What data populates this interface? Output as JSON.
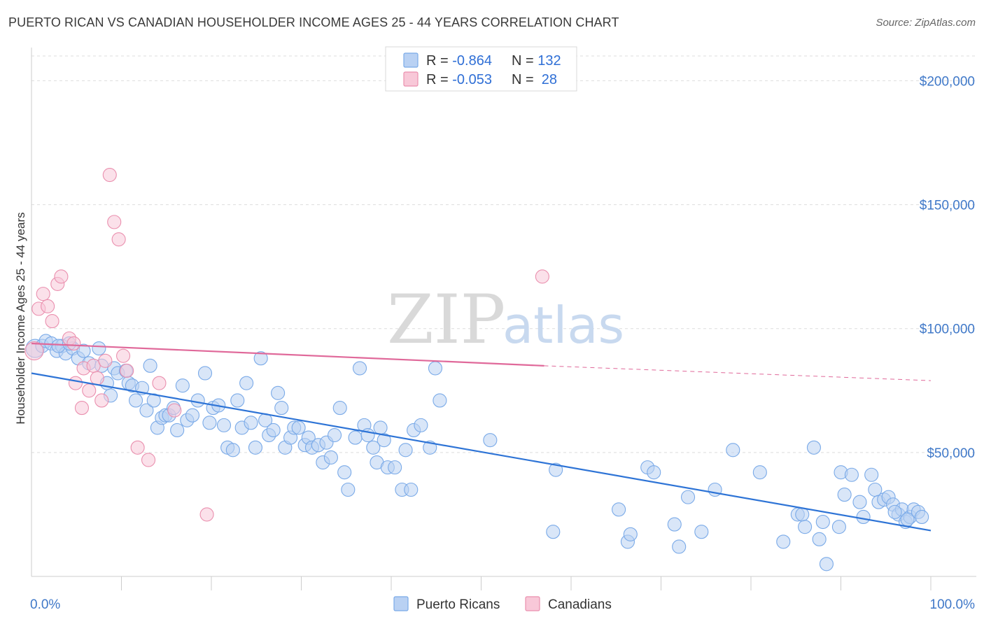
{
  "title": "PUERTO RICAN VS CANADIAN HOUSEHOLDER INCOME AGES 25 - 44 YEARS CORRELATION CHART",
  "source": "Source: ZipAtlas.com",
  "watermark": {
    "zip": "ZIP",
    "atlas": "atlas"
  },
  "legend": {
    "rows": [
      {
        "r_label": "R = ",
        "r_value": "-0.864",
        "n_label": "N = ",
        "n_value": "132",
        "color": "#7aaae8",
        "fill": "#b9d1f3"
      },
      {
        "r_label": "R = ",
        "r_value": "-0.053",
        "n_label": "N = ",
        "n_value": " 28",
        "color": "#ea8fae",
        "fill": "#f8c8d8"
      }
    ]
  },
  "bottom_legend": [
    {
      "label": "Puerto Ricans",
      "color": "#7aaae8",
      "fill": "#b9d1f3"
    },
    {
      "label": "Canadians",
      "color": "#ea8fae",
      "fill": "#f8c8d8"
    }
  ],
  "colors": {
    "blue_line": "#2e74d6",
    "pink_line": "#e0699a",
    "grid": "#dddddd"
  },
  "chart_data": {
    "type": "scatter",
    "title": "PUERTO RICAN VS CANADIAN HOUSEHOLDER INCOME AGES 25 - 44 YEARS CORRELATION CHART",
    "xlabel": "",
    "ylabel": "Householder Income Ages 25 - 44 years",
    "xlim": [
      0,
      100
    ],
    "ylim": [
      0,
      210000
    ],
    "x_tick_labels": [
      "0.0%",
      "100.0%"
    ],
    "y_ticks": [
      50000,
      100000,
      150000,
      200000
    ],
    "y_tick_labels": [
      "$50,000",
      "$100,000",
      "$150,000",
      "$200,000"
    ],
    "grid": true,
    "series": [
      {
        "name": "Puerto Ricans",
        "trend": {
          "x": [
            0,
            100
          ],
          "y": [
            82000,
            18500
          ],
          "dashed_from": null
        },
        "points": [
          [
            0.4,
            92000
          ],
          [
            1.2,
            93000
          ],
          [
            1.6,
            95000
          ],
          [
            2.2,
            94000
          ],
          [
            2.8,
            91000
          ],
          [
            3.4,
            93000
          ],
          [
            3.8,
            90000
          ],
          [
            4.6,
            92000
          ],
          [
            5.2,
            88000
          ],
          [
            5.8,
            91000
          ],
          [
            6.4,
            86000
          ],
          [
            7.5,
            92000
          ],
          [
            7.8,
            85000
          ],
          [
            8.4,
            78000
          ],
          [
            8.8,
            73000
          ],
          [
            9.2,
            84000
          ],
          [
            9.6,
            82000
          ],
          [
            10.5,
            83000
          ],
          [
            10.8,
            78000
          ],
          [
            11.2,
            77000
          ],
          [
            11.6,
            71000
          ],
          [
            12.3,
            76000
          ],
          [
            12.8,
            67000
          ],
          [
            13.2,
            85000
          ],
          [
            13.6,
            71000
          ],
          [
            14.0,
            60000
          ],
          [
            14.5,
            64000
          ],
          [
            14.9,
            65000
          ],
          [
            15.3,
            65000
          ],
          [
            15.8,
            68000
          ],
          [
            16.2,
            59000
          ],
          [
            16.8,
            77000
          ],
          [
            17.3,
            63000
          ],
          [
            17.9,
            65000
          ],
          [
            18.5,
            71000
          ],
          [
            19.3,
            82000
          ],
          [
            19.8,
            62000
          ],
          [
            20.2,
            68000
          ],
          [
            20.8,
            69000
          ],
          [
            21.4,
            61000
          ],
          [
            21.8,
            52000
          ],
          [
            22.4,
            51000
          ],
          [
            22.9,
            71000
          ],
          [
            23.4,
            60000
          ],
          [
            23.9,
            78000
          ],
          [
            24.4,
            62000
          ],
          [
            24.9,
            52000
          ],
          [
            25.5,
            88000
          ],
          [
            26.0,
            63000
          ],
          [
            26.4,
            57000
          ],
          [
            26.9,
            59000
          ],
          [
            27.4,
            74000
          ],
          [
            27.8,
            68000
          ],
          [
            28.2,
            52000
          ],
          [
            28.8,
            56000
          ],
          [
            29.2,
            60000
          ],
          [
            29.7,
            60000
          ],
          [
            30.4,
            53000
          ],
          [
            30.8,
            56000
          ],
          [
            31.2,
            52000
          ],
          [
            31.9,
            53000
          ],
          [
            32.4,
            46000
          ],
          [
            32.8,
            54000
          ],
          [
            33.3,
            48000
          ],
          [
            33.7,
            57000
          ],
          [
            34.3,
            68000
          ],
          [
            34.8,
            42000
          ],
          [
            35.2,
            35000
          ],
          [
            36.0,
            56000
          ],
          [
            36.5,
            84000
          ],
          [
            37.0,
            61000
          ],
          [
            37.4,
            57000
          ],
          [
            38.0,
            52000
          ],
          [
            38.4,
            46000
          ],
          [
            38.8,
            60000
          ],
          [
            39.2,
            55000
          ],
          [
            39.6,
            44000
          ],
          [
            40.4,
            44000
          ],
          [
            41.2,
            35000
          ],
          [
            41.6,
            51000
          ],
          [
            42.2,
            35000
          ],
          [
            42.5,
            59000
          ],
          [
            43.3,
            61000
          ],
          [
            44.3,
            52000
          ],
          [
            44.9,
            84000
          ],
          [
            45.4,
            71000
          ],
          [
            51.0,
            55000
          ],
          [
            58.0,
            18000
          ],
          [
            58.3,
            43000
          ],
          [
            65.3,
            27000
          ],
          [
            66.3,
            14000
          ],
          [
            66.6,
            17000
          ],
          [
            68.5,
            44000
          ],
          [
            69.2,
            42000
          ],
          [
            71.5,
            21000
          ],
          [
            72.0,
            12000
          ],
          [
            73.0,
            32000
          ],
          [
            74.5,
            18000
          ],
          [
            76.0,
            35000
          ],
          [
            78.0,
            51000
          ],
          [
            81.0,
            42000
          ],
          [
            83.6,
            14000
          ],
          [
            85.2,
            25000
          ],
          [
            85.7,
            25000
          ],
          [
            86.0,
            20000
          ],
          [
            87.0,
            52000
          ],
          [
            87.6,
            15000
          ],
          [
            88.0,
            22000
          ],
          [
            88.4,
            5000
          ],
          [
            89.8,
            20000
          ],
          [
            90.0,
            42000
          ],
          [
            90.4,
            33000
          ],
          [
            91.2,
            41000
          ],
          [
            92.1,
            30000
          ],
          [
            92.5,
            24000
          ],
          [
            93.4,
            41000
          ],
          [
            93.8,
            35000
          ],
          [
            94.2,
            30000
          ],
          [
            94.8,
            31000
          ],
          [
            95.3,
            32000
          ],
          [
            95.8,
            29000
          ],
          [
            96.4,
            25000
          ],
          [
            96.8,
            27000
          ],
          [
            97.2,
            22000
          ],
          [
            97.7,
            24000
          ],
          [
            98.1,
            27000
          ],
          [
            98.6,
            26000
          ],
          [
            99.0,
            24000
          ],
          [
            97.4,
            23000
          ],
          [
            96.0,
            26000
          ],
          [
            3.0,
            93000
          ],
          [
            4.2,
            94000
          ]
        ]
      },
      {
        "name": "Canadians",
        "trend": {
          "x": [
            0,
            57,
            100
          ],
          "y": [
            94000,
            85000,
            79000
          ],
          "dashed_from": 57
        },
        "points": [
          [
            0.3,
            91000
          ],
          [
            0.8,
            108000
          ],
          [
            1.3,
            114000
          ],
          [
            1.8,
            109000
          ],
          [
            2.3,
            103000
          ],
          [
            2.9,
            118000
          ],
          [
            3.3,
            121000
          ],
          [
            4.2,
            96000
          ],
          [
            4.7,
            94000
          ],
          [
            4.9,
            78000
          ],
          [
            5.6,
            68000
          ],
          [
            5.8,
            84000
          ],
          [
            6.4,
            75000
          ],
          [
            6.9,
            85000
          ],
          [
            7.3,
            80000
          ],
          [
            7.8,
            71000
          ],
          [
            8.2,
            87000
          ],
          [
            8.7,
            162000
          ],
          [
            9.2,
            143000
          ],
          [
            9.7,
            136000
          ],
          [
            10.2,
            89000
          ],
          [
            10.6,
            83000
          ],
          [
            11.8,
            52000
          ],
          [
            13.0,
            47000
          ],
          [
            14.2,
            78000
          ],
          [
            15.9,
            67000
          ],
          [
            19.5,
            25000
          ],
          [
            56.8,
            121000
          ]
        ]
      }
    ]
  }
}
